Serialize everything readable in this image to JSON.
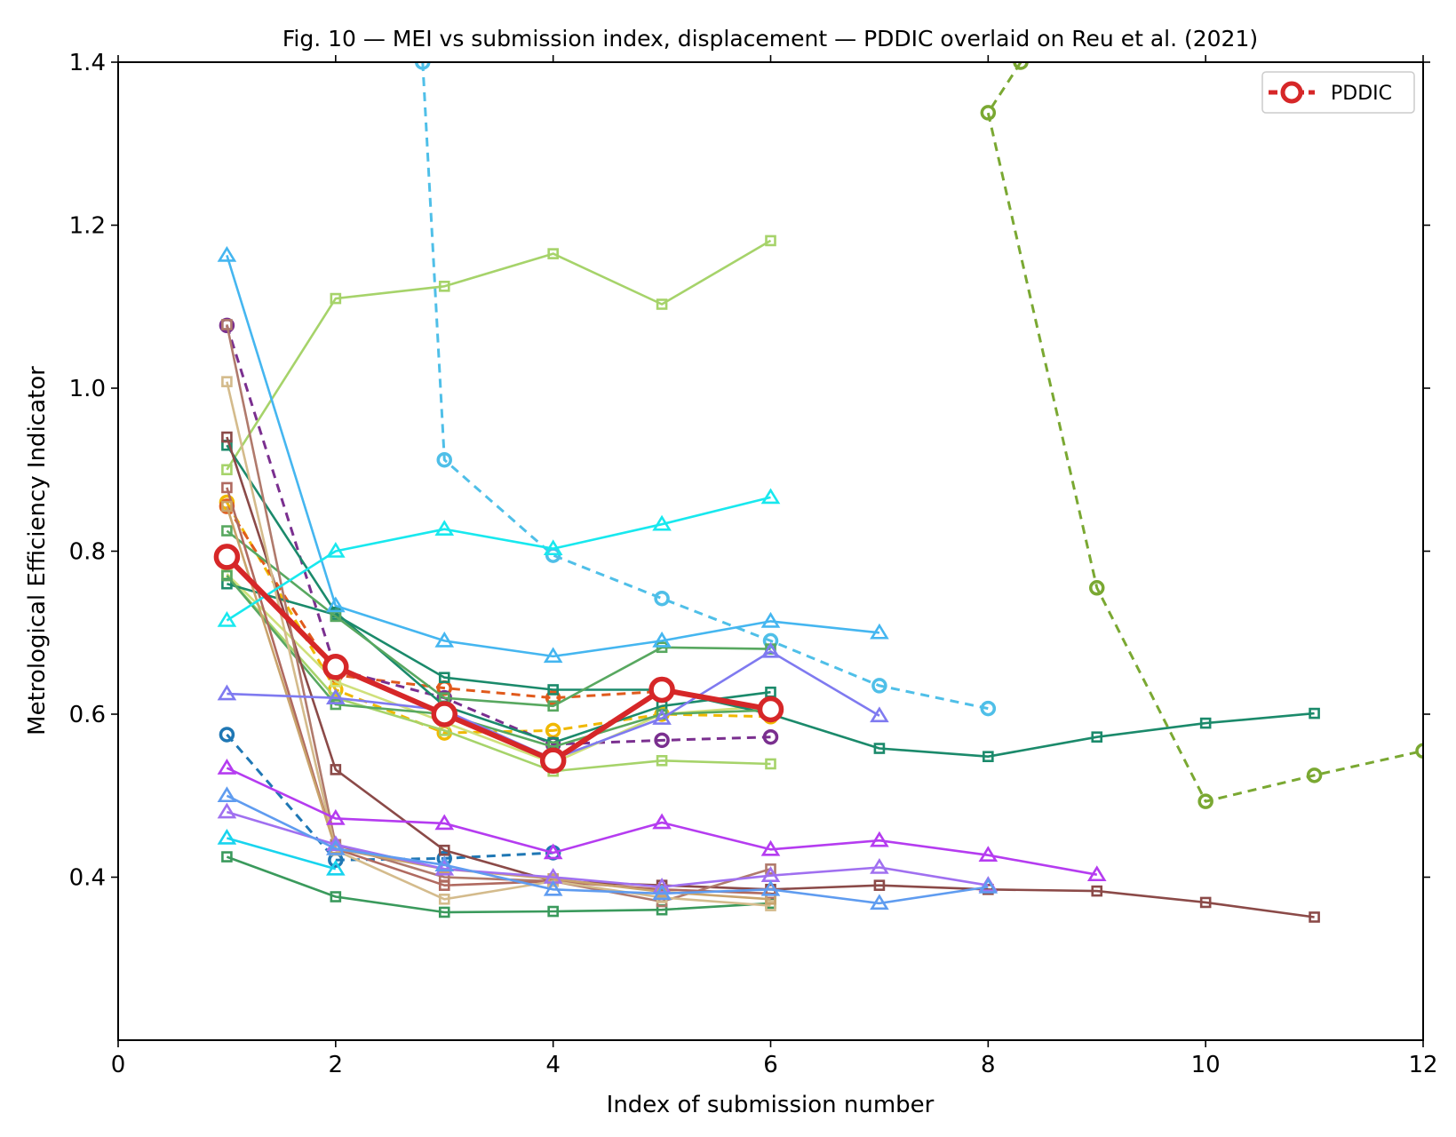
{
  "chart_data": {
    "type": "line",
    "title": "Fig. 10 — MEI vs submission index, displacement — PDDIC overlaid on Reu et al. (2021)",
    "xlabel": "Index of submission number",
    "ylabel": "Metrological Efficiency Indicator",
    "xlim": [
      0,
      12
    ],
    "ylim": [
      0.2,
      1.4
    ],
    "x_ticks": [
      0,
      2,
      4,
      6,
      8,
      10,
      12
    ],
    "y_ticks": [
      0.4,
      0.6,
      0.8,
      1.0,
      1.2,
      1.4
    ],
    "x_tick_labels": [
      "0",
      "2",
      "4",
      "6",
      "8",
      "10",
      "12"
    ],
    "y_tick_labels": [
      "0.4",
      "0.6",
      "0.8",
      "1.0",
      "1.2",
      "1.4"
    ],
    "grid": false,
    "legend": {
      "position": "top-right",
      "entries": [
        "PDDIC"
      ]
    },
    "highlight": {
      "name": "PDDIC",
      "color": "#d62728",
      "marker": "circle",
      "x": [
        1,
        2,
        3,
        4,
        5,
        6
      ],
      "y": [
        0.793,
        0.658,
        0.6,
        0.543,
        0.63,
        0.606
      ]
    },
    "background_series": [
      {
        "color": "#f0b800",
        "style": "dashed",
        "marker": "circle",
        "x": [
          1,
          2,
          3,
          4,
          5,
          6
        ],
        "y": [
          0.86,
          0.63,
          0.577,
          0.58,
          0.6,
          0.597
        ]
      },
      {
        "color": "#e05a1c",
        "style": "dashed",
        "marker": "circle",
        "x": [
          1,
          2,
          3,
          4,
          5
        ],
        "y": [
          0.855,
          0.648,
          0.632,
          0.62,
          0.628
        ]
      },
      {
        "color": "#7a2f8f",
        "style": "dashed",
        "marker": "circle",
        "x": [
          1,
          2,
          3,
          4,
          5,
          6
        ],
        "y": [
          1.077,
          0.655,
          0.62,
          0.563,
          0.568,
          0.572
        ]
      },
      {
        "color": "#1f77b4",
        "style": "dashed",
        "marker": "circle",
        "x": [
          1,
          2,
          3,
          4
        ],
        "y": [
          0.575,
          0.421,
          0.423,
          0.43
        ]
      },
      {
        "color": "#4fbfe8",
        "style": "dashed",
        "marker": "circle",
        "x": [
          2.8,
          3,
          4,
          5,
          6,
          7,
          8
        ],
        "y": [
          1.4,
          0.912,
          0.795,
          0.742,
          0.69,
          0.635,
          0.607
        ]
      },
      {
        "color": "#7aa832",
        "style": "dashed",
        "marker": "circle",
        "x": [
          8.3,
          8,
          9,
          10,
          11,
          12
        ],
        "y": [
          1.4,
          1.338,
          0.755,
          0.493,
          0.525,
          0.555
        ]
      },
      {
        "color": "#a6d36a",
        "style": "solid",
        "marker": "square",
        "x": [
          1,
          2,
          3,
          4,
          5,
          6
        ],
        "y": [
          0.9,
          1.11,
          1.125,
          1.165,
          1.103,
          1.181
        ]
      },
      {
        "color": "#a6d36a",
        "style": "solid",
        "marker": "square",
        "x": [
          1,
          2,
          3,
          4,
          5,
          6
        ],
        "y": [
          0.77,
          0.62,
          0.58,
          0.53,
          0.543,
          0.539
        ]
      },
      {
        "color": "#cfe07a",
        "style": "solid",
        "marker": "square",
        "x": [
          1,
          2,
          3,
          4,
          5,
          6
        ],
        "y": [
          0.772,
          0.64,
          0.59,
          0.54,
          0.6,
          0.61
        ]
      },
      {
        "color": "#1b8a6b",
        "style": "solid",
        "marker": "square",
        "x": [
          1,
          2,
          3,
          4,
          5,
          6,
          7,
          8,
          9,
          10,
          11
        ],
        "y": [
          0.76,
          0.722,
          0.645,
          0.63,
          0.63,
          0.6,
          0.558,
          0.548,
          0.572,
          0.589,
          0.601
        ]
      },
      {
        "color": "#1b8a6b",
        "style": "solid",
        "marker": "square",
        "x": [
          1,
          2,
          3,
          4,
          5,
          6
        ],
        "y": [
          0.93,
          0.725,
          0.61,
          0.565,
          0.61,
          0.627
        ]
      },
      {
        "color": "#58a860",
        "style": "solid",
        "marker": "square",
        "x": [
          1,
          2,
          3,
          4,
          5,
          6
        ],
        "y": [
          0.825,
          0.72,
          0.62,
          0.61,
          0.682,
          0.68
        ]
      },
      {
        "color": "#58a860",
        "style": "solid",
        "marker": "square",
        "x": [
          1,
          2,
          3,
          4,
          5,
          6
        ],
        "y": [
          0.77,
          0.612,
          0.6,
          0.56,
          0.6,
          0.605
        ]
      },
      {
        "color": "#3a9a5c",
        "style": "solid",
        "marker": "square",
        "x": [
          1,
          2,
          3,
          4,
          5,
          6
        ],
        "y": [
          0.425,
          0.376,
          0.357,
          0.358,
          0.36,
          0.368
        ]
      },
      {
        "color": "#8b4a48",
        "style": "solid",
        "marker": "square",
        "x": [
          1,
          2,
          3,
          4,
          5,
          6,
          7,
          8,
          9,
          10,
          11
        ],
        "y": [
          0.94,
          0.532,
          0.433,
          0.395,
          0.39,
          0.385,
          0.39,
          0.385,
          0.383,
          0.369,
          0.351
        ]
      },
      {
        "color": "#b07a6c",
        "style": "solid",
        "marker": "square",
        "x": [
          1,
          2,
          3,
          4,
          5,
          6
        ],
        "y": [
          1.078,
          0.44,
          0.4,
          0.395,
          0.37,
          0.41
        ]
      },
      {
        "color": "#b06a60",
        "style": "solid",
        "marker": "square",
        "x": [
          1,
          2,
          3,
          4,
          5,
          6
        ],
        "y": [
          0.878,
          0.435,
          0.39,
          0.395,
          0.385,
          0.38
        ]
      },
      {
        "color": "#d4bb8c",
        "style": "solid",
        "marker": "square",
        "x": [
          1,
          2,
          3,
          4,
          5,
          6
        ],
        "y": [
          1.008,
          0.433,
          0.373,
          0.395,
          0.375,
          0.365
        ]
      },
      {
        "color": "#c9a36c",
        "style": "solid",
        "marker": "square",
        "x": [
          1,
          2,
          3,
          4,
          5,
          6
        ],
        "y": [
          0.855,
          0.435,
          0.41,
          0.398,
          0.382,
          0.373
        ]
      },
      {
        "color": "#45b6f0",
        "style": "solid",
        "marker": "triangle",
        "x": [
          1,
          2,
          3,
          4,
          5,
          6,
          7
        ],
        "y": [
          1.163,
          0.733,
          0.69,
          0.671,
          0.69,
          0.714,
          0.7
        ]
      },
      {
        "color": "#18e8ee",
        "style": "solid",
        "marker": "triangle",
        "x": [
          1,
          2,
          3,
          4,
          5,
          6
        ],
        "y": [
          0.715,
          0.8,
          0.827,
          0.803,
          0.833,
          0.866
        ]
      },
      {
        "color": "#18d4ee",
        "style": "solid",
        "marker": "triangle",
        "x": [
          1,
          2
        ],
        "y": [
          0.448,
          0.41
        ]
      },
      {
        "color": "#7f7af0",
        "style": "solid",
        "marker": "triangle",
        "x": [
          1,
          2,
          3,
          4,
          5,
          6,
          7
        ],
        "y": [
          0.625,
          0.62,
          0.605,
          0.545,
          0.595,
          0.677,
          0.598
        ]
      },
      {
        "color": "#b53cf0",
        "style": "solid",
        "marker": "triangle",
        "x": [
          1,
          2,
          3,
          4,
          5,
          6,
          7,
          8,
          9
        ],
        "y": [
          0.534,
          0.472,
          0.466,
          0.43,
          0.467,
          0.434,
          0.445,
          0.427,
          0.403
        ]
      },
      {
        "color": "#a070f0",
        "style": "solid",
        "marker": "triangle",
        "x": [
          1,
          2,
          3,
          4,
          5,
          6,
          7,
          8
        ],
        "y": [
          0.48,
          0.44,
          0.41,
          0.4,
          0.388,
          0.402,
          0.412,
          0.39
        ]
      },
      {
        "color": "#5f9cf0",
        "style": "solid",
        "marker": "triangle",
        "x": [
          1,
          2,
          3,
          4,
          5,
          6,
          7,
          8
        ],
        "y": [
          0.5,
          0.435,
          0.415,
          0.385,
          0.38,
          0.385,
          0.368,
          0.388
        ]
      }
    ]
  }
}
